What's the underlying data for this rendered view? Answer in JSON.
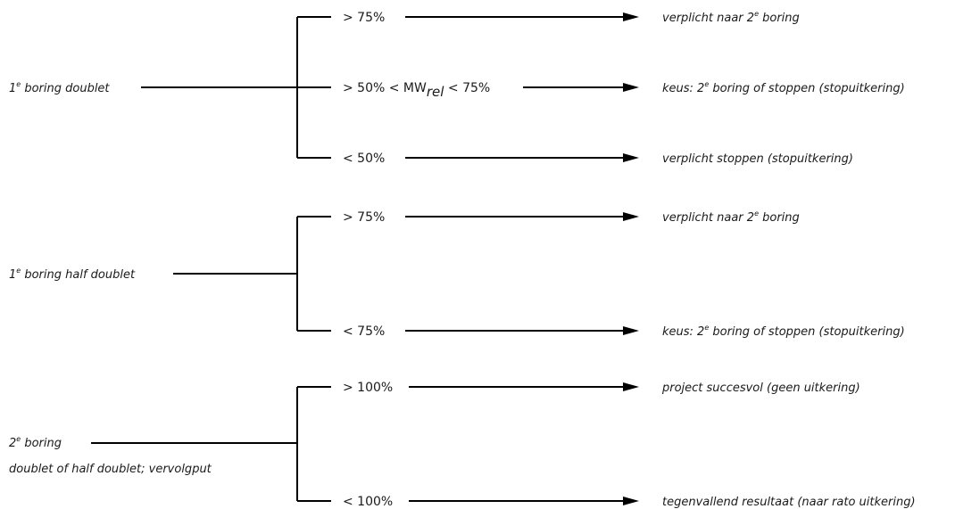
{
  "groups": [
    {
      "source": {
        "line1": "1",
        "sup": "e",
        "line1_rest": " boring doublet",
        "line2": ""
      },
      "branches": [
        {
          "pre": "> 75%",
          "sub": "",
          "post": "",
          "outcome_pre": "verplicht naar 2",
          "outcome_sup": "e",
          "outcome_post": " boring"
        },
        {
          "pre": "> 50% < MW",
          "sub": "rel",
          "post": " < 75%",
          "outcome_pre": "keus: 2",
          "outcome_sup": "e",
          "outcome_post": " boring of stoppen (stopuitkering)"
        },
        {
          "pre": "< 50%",
          "sub": "",
          "post": "",
          "outcome_pre": "verplicht stoppen (stopuitkering)",
          "outcome_sup": "",
          "outcome_post": ""
        }
      ]
    },
    {
      "source": {
        "line1": "1",
        "sup": "e",
        "line1_rest": " boring half doublet",
        "line2": ""
      },
      "branches": [
        {
          "pre": "> 75%",
          "sub": "",
          "post": "",
          "outcome_pre": "verplicht naar 2",
          "outcome_sup": "e",
          "outcome_post": " boring"
        },
        {
          "pre": "< 75%",
          "sub": "",
          "post": "",
          "outcome_pre": "keus: 2",
          "outcome_sup": "e",
          "outcome_post": " boring of stoppen (stopuitkering)"
        }
      ]
    },
    {
      "source": {
        "line1": "2",
        "sup": "e",
        "line1_rest": " boring",
        "line2": "doublet of half doublet; vervolgput"
      },
      "branches": [
        {
          "pre": "> 100%",
          "sub": "",
          "post": "",
          "outcome_pre": "project succesvol (geen uitkering)",
          "outcome_sup": "",
          "outcome_post": ""
        },
        {
          "pre": "< 100%",
          "sub": "",
          "post": "",
          "outcome_pre": "tegenvallend resultaat (naar rato uitkering)",
          "outcome_sup": "",
          "outcome_post": ""
        }
      ]
    }
  ]
}
